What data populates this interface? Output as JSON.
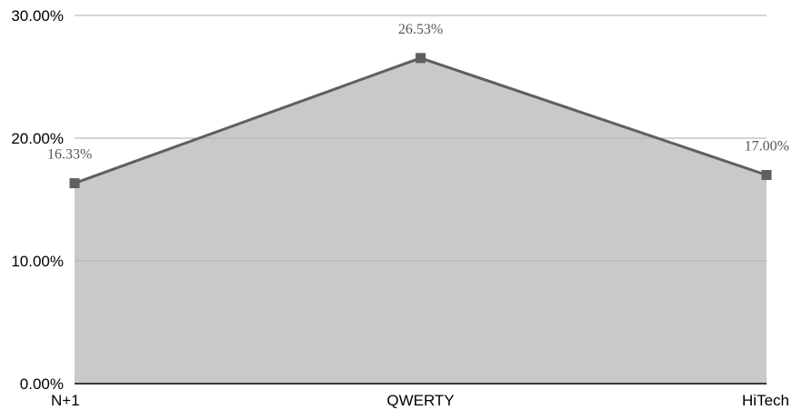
{
  "chart_data": {
    "type": "area",
    "categories": [
      "N+1",
      "QWERTY",
      "HiTech"
    ],
    "series": [
      {
        "values": [
          16.33,
          26.53,
          17.0
        ]
      }
    ],
    "data_labels": [
      "16.33%",
      "26.53%",
      "17.00%"
    ],
    "y_tick_values": [
      0,
      10,
      20,
      30
    ],
    "y_tick_labels": [
      "0.00%",
      "10.00%",
      "20.00%",
      "30.00%"
    ],
    "ylim": [
      0,
      30
    ],
    "grid": true,
    "legend": "none",
    "colors": {
      "fill": "#c8c9c8",
      "line": "#5f5f5f",
      "marker": "#5f5f5f",
      "grid": "#b0b0b0",
      "axis": "#000000"
    }
  }
}
